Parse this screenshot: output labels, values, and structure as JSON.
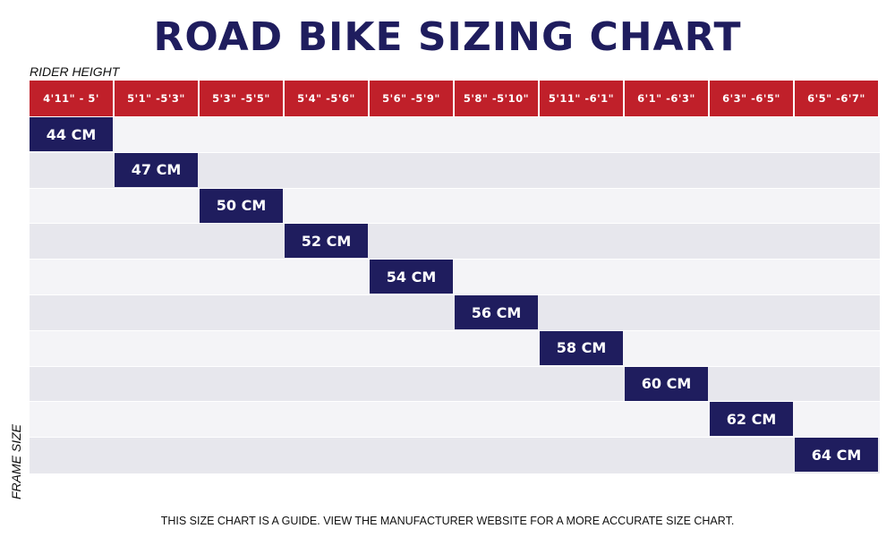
{
  "chart_data": {
    "type": "table",
    "title": "ROAD BIKE SIZING CHART",
    "xlabel": "RIDER HEIGHT",
    "ylabel": "FRAME SIZE",
    "categories": [
      "4'11\" - 5'",
      "5'1\" -5'3\"",
      "5'3\" -5'5\"",
      "5'4\" -5'6\"",
      "5'6\" -5'9\"",
      "5'8\" -5'10\"",
      "5'11\" -6'1\"",
      "6'1\" -6'3\"",
      "6'3\" -6'5\"",
      "6'5\" -6'7\""
    ],
    "values": [
      "44 CM",
      "47 CM",
      "50 CM",
      "52 CM",
      "54 CM",
      "56 CM",
      "58 CM",
      "60 CM",
      "62 CM",
      "64 CM"
    ],
    "footnote": "THIS SIZE CHART IS A GUIDE. VIEW THE MANUFACTURER WEBSITE FOR A MORE ACCURATE SIZE CHART."
  },
  "colors": {
    "header": "#c0202a",
    "block": "#1f1d5e",
    "row_light": "#f4f4f7",
    "row_dark": "#e7e7ed"
  }
}
